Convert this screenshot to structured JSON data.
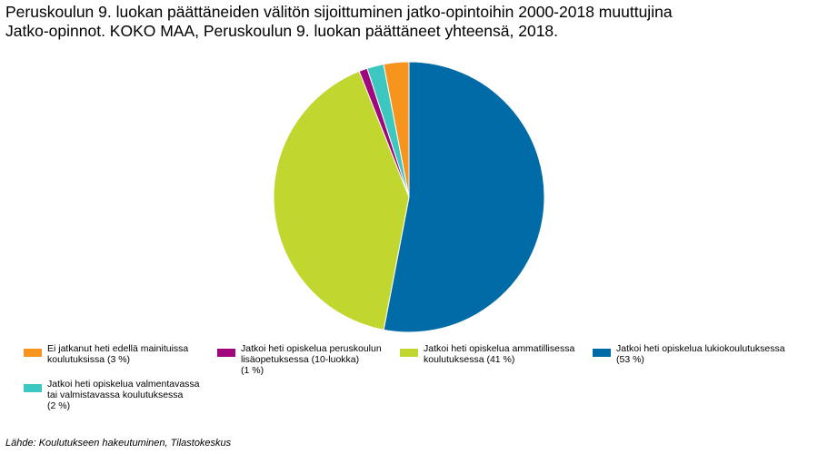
{
  "title": {
    "line1": "Peruskoulun 9. luokan päättäneiden välitön sijoittuminen jatko-opintoihin 2000-2018 muuttujina",
    "line2": "Jatko-opinnot. KOKO MAA, Peruskoulun 9. luokan päättäneet yhteensä, 2018."
  },
  "chart_data": {
    "type": "pie",
    "title": "Peruskoulun 9. luokan päättäneiden välitön sijoittuminen jatko-opintoihin 2000-2018 muuttujina Jatko-opinnot. KOKO MAA, Peruskoulun 9. luokan päättäneet yhteensä, 2018.",
    "slices": [
      {
        "name": "Jatkoi heti opiskelua lukiokoulutuksessa",
        "value": 53,
        "color": "#006ba6"
      },
      {
        "name": "Jatkoi heti opiskelua ammatillisessa koulutuksessa",
        "value": 41,
        "color": "#c1d72f"
      },
      {
        "name": "Jatkoi heti opiskelua peruskoulun lisäopetuksessa (10-luokka)",
        "value": 1,
        "color": "#a0077d"
      },
      {
        "name": "Jatkoi heti opiskelua valmentavassa tai valmistavassa koulutuksessa",
        "value": 2,
        "color": "#3cc8c0"
      },
      {
        "name": "Ei jatkanut heti edellä mainituissa koulutuksissa",
        "value": 3,
        "color": "#f7941d"
      }
    ],
    "start": "12 o'clock",
    "direction": "clockwise"
  },
  "legend": [
    {
      "key": "ei",
      "lines": [
        "Ei jatkanut heti edellä mainituissa",
        "koulutuksissa (3 %)"
      ],
      "color": "#f7941d"
    },
    {
      "key": "lisa",
      "lines": [
        "Jatkoi heti opiskelua peruskoulun",
        "lisäopetuksessa (10-luokka)",
        "(1 %)"
      ],
      "color": "#a0077d"
    },
    {
      "key": "amm",
      "lines": [
        "Jatkoi heti opiskelua ammatillisessa",
        "koulutuksessa (41 %)"
      ],
      "color": "#c1d72f"
    },
    {
      "key": "lukio",
      "lines": [
        "Jatkoi heti opiskelua lukiokoulutuksessa",
        "(53 %)"
      ],
      "color": "#006ba6"
    },
    {
      "key": "valm",
      "lines": [
        "Jatkoi heti opiskelua valmentavassa",
        "tai valmistavassa koulutuksessa",
        "(2 %)"
      ],
      "color": "#3cc8c0"
    }
  ],
  "source": "Lähde: Koulutukseen hakeutuminen, Tilastokeskus"
}
